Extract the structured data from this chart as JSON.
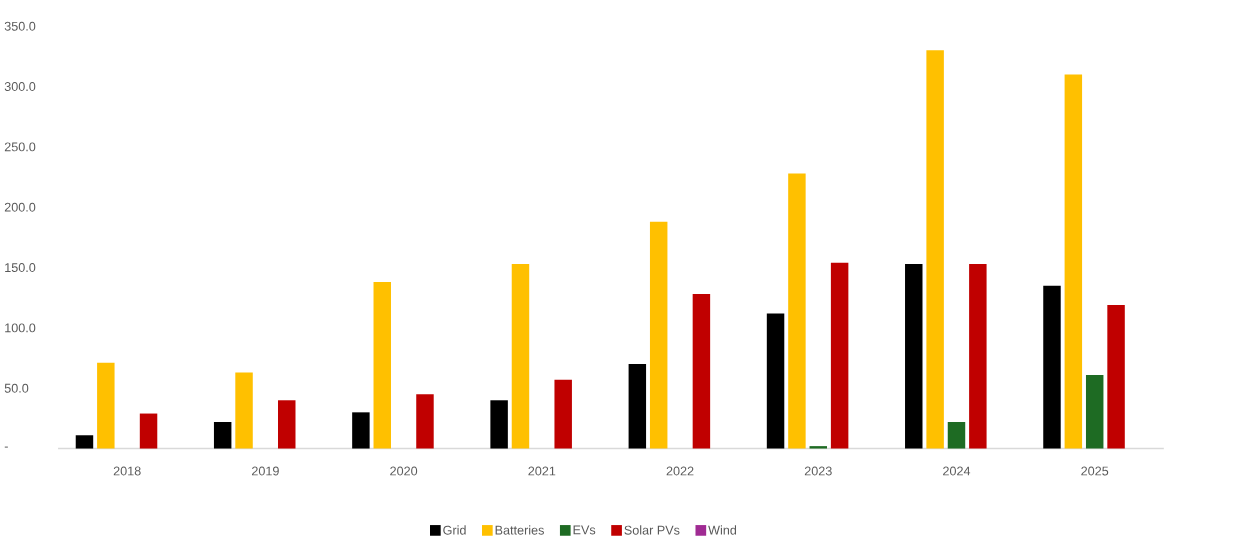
{
  "chart_data": {
    "type": "bar",
    "categories": [
      "2018",
      "2019",
      "2020",
      "2021",
      "2022",
      "2023",
      "2024",
      "2025"
    ],
    "series": [
      {
        "name": "Grid",
        "color": "#000000",
        "values": [
          11,
          22,
          30,
          40,
          70,
          112,
          153,
          135
        ]
      },
      {
        "name": "Batteries",
        "color": "#ffc000",
        "values": [
          71,
          63,
          138,
          153,
          188,
          228,
          330,
          310
        ]
      },
      {
        "name": "EVs",
        "color": "#1e6b23",
        "values": [
          0,
          0,
          0,
          0,
          0,
          2,
          22,
          61
        ]
      },
      {
        "name": "Solar PVs",
        "color": "#c00000",
        "values": [
          29,
          40,
          45,
          57,
          128,
          154,
          153,
          119
        ]
      },
      {
        "name": "Wind",
        "color": "#a02b93",
        "values": [
          0,
          0,
          0,
          0,
          0,
          0,
          0,
          0
        ]
      }
    ],
    "ylim": [
      0,
      350
    ],
    "yticks": [
      {
        "value": 0,
        "label": "-"
      },
      {
        "value": 50,
        "label": "50.0"
      },
      {
        "value": 100,
        "label": "100.0"
      },
      {
        "value": 150,
        "label": "150.0"
      },
      {
        "value": 200,
        "label": "200.0"
      },
      {
        "value": 250,
        "label": "250.0"
      },
      {
        "value": 300,
        "label": "300.0"
      },
      {
        "value": 350,
        "label": "350.0"
      }
    ],
    "grid": false,
    "legend": "bottom"
  }
}
